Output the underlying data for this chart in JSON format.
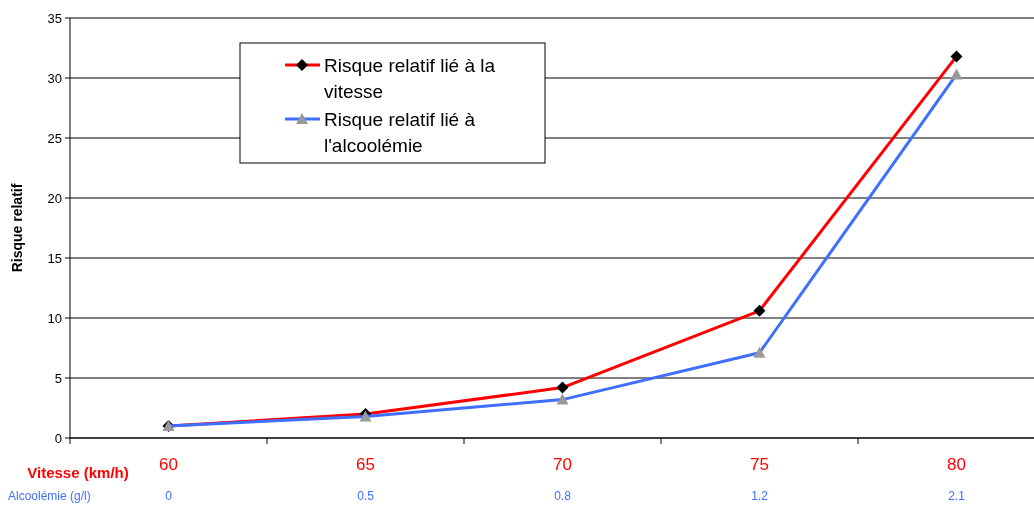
{
  "chart_data": {
    "type": "line",
    "xlabel": "Vitesse (km/h)",
    "ylabel": "Risque relatif",
    "categories": [
      "60",
      "65",
      "70",
      "75",
      "80"
    ],
    "series": [
      {
        "name": "Risque relatif lié à la vitesse",
        "color": "#ff0000",
        "marker": "diamond",
        "values": [
          1,
          2,
          4.2,
          10.6,
          31.8
        ]
      },
      {
        "name": "Risque relatif lié à l'alcoolémie",
        "color": "#3f6fff",
        "marker": "triangle",
        "values": [
          1,
          1.8,
          3.2,
          7.1,
          30.3
        ]
      }
    ],
    "annotations": [
      "Alcoolémie (g/l)",
      "0",
      "0.5",
      "0.8",
      "1.2",
      "2.1"
    ],
    "ylim": [
      0,
      35
    ],
    "yticks": [
      0,
      5,
      10,
      15,
      20,
      25,
      30,
      35
    ],
    "grid": "y",
    "legend": "top left"
  }
}
